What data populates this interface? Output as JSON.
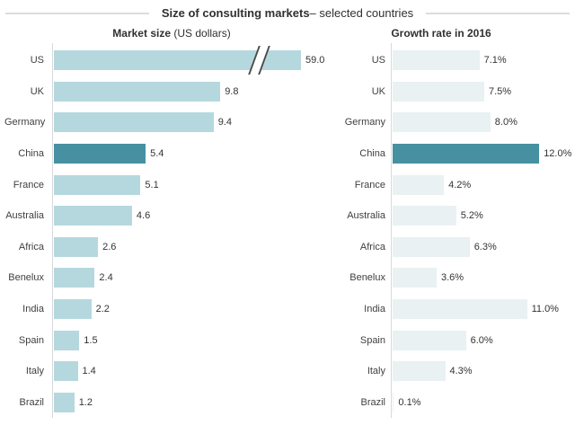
{
  "title": {
    "bold": "Size of consulting markets",
    "regular": " – selected countries"
  },
  "colors": {
    "bar_light": "#b5d8de",
    "bar_pale": "#e9f1f2",
    "bar_highlight": "#4690a2",
    "axis_line": "#d9d9d9",
    "title_rule": "#dcdcdc",
    "text": "#3f3f3f"
  },
  "chart_data": [
    {
      "type": "bar",
      "orientation": "horizontal",
      "title_bold": "Market size",
      "title_regular": " (US dollars)",
      "categories": [
        "US",
        "UK",
        "Germany",
        "China",
        "France",
        "Australia",
        "Africa",
        "Benelux",
        "India",
        "Spain",
        "Italy",
        "Brazil"
      ],
      "values": [
        59.0,
        9.8,
        9.4,
        5.4,
        5.1,
        4.6,
        2.6,
        2.4,
        2.2,
        1.5,
        1.4,
        1.2
      ],
      "labels": [
        "59.0",
        "9.8",
        "9.4",
        "5.4",
        "5.1",
        "4.6",
        "2.6",
        "2.4",
        "2.2",
        "1.5",
        "1.4",
        "1.2"
      ],
      "bar_color": "#b5d8de",
      "highlight_category": "China",
      "axis_break_on": "US",
      "legend": "none",
      "grid": "off"
    },
    {
      "type": "bar",
      "orientation": "horizontal",
      "title_bold": "Growth rate in 2016",
      "title_regular": "",
      "categories": [
        "US",
        "UK",
        "Germany",
        "China",
        "France",
        "Australia",
        "Africa",
        "Benelux",
        "India",
        "Spain",
        "Italy",
        "Brazil"
      ],
      "values": [
        7.1,
        7.5,
        8.0,
        12.0,
        4.2,
        5.2,
        6.3,
        3.6,
        11.0,
        6.0,
        4.3,
        0.1
      ],
      "labels": [
        "7.1%",
        "7.5%",
        "8.0%",
        "12.0%",
        "4.2%",
        "5.2%",
        "6.3%",
        "3.6%",
        "11.0%",
        "6.0%",
        "4.3%",
        "0.1%"
      ],
      "bar_color": "#e9f1f2",
      "highlight_category": "China",
      "axis_break_on": null,
      "legend": "none",
      "grid": "off"
    }
  ]
}
